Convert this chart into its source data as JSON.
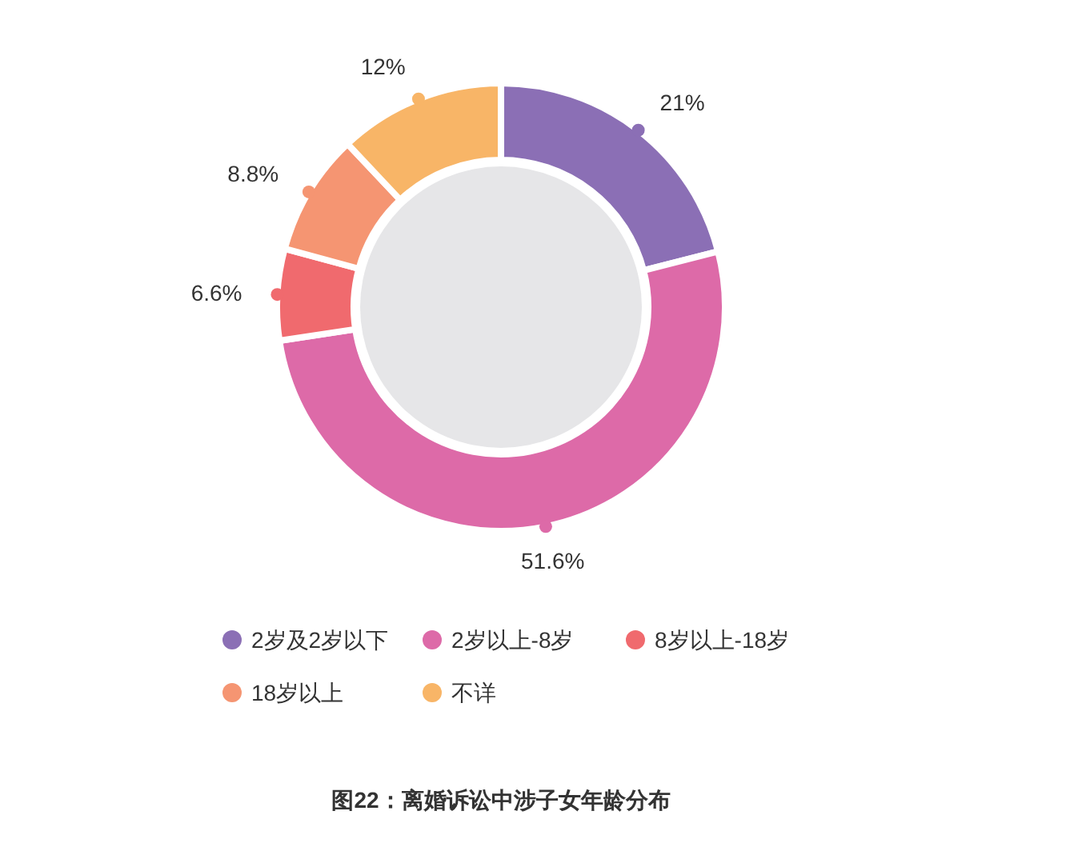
{
  "chart_data": {
    "type": "donut",
    "title": "图22：离婚诉讼中涉子女年龄分布",
    "categories": [
      "2岁及2岁以下",
      "2岁以上-8岁",
      "8岁以上-18岁",
      "18岁以上",
      "不详"
    ],
    "values": [
      21,
      51.6,
      6.6,
      8.8,
      12
    ],
    "colors": [
      "#8b6fb5",
      "#dd6aa8",
      "#f06a6e",
      "#f59572",
      "#f8b567"
    ],
    "value_labels": [
      "21%",
      "51.6%",
      "6.6%",
      "8.8%",
      "12%"
    ],
    "legend": "bottom"
  }
}
